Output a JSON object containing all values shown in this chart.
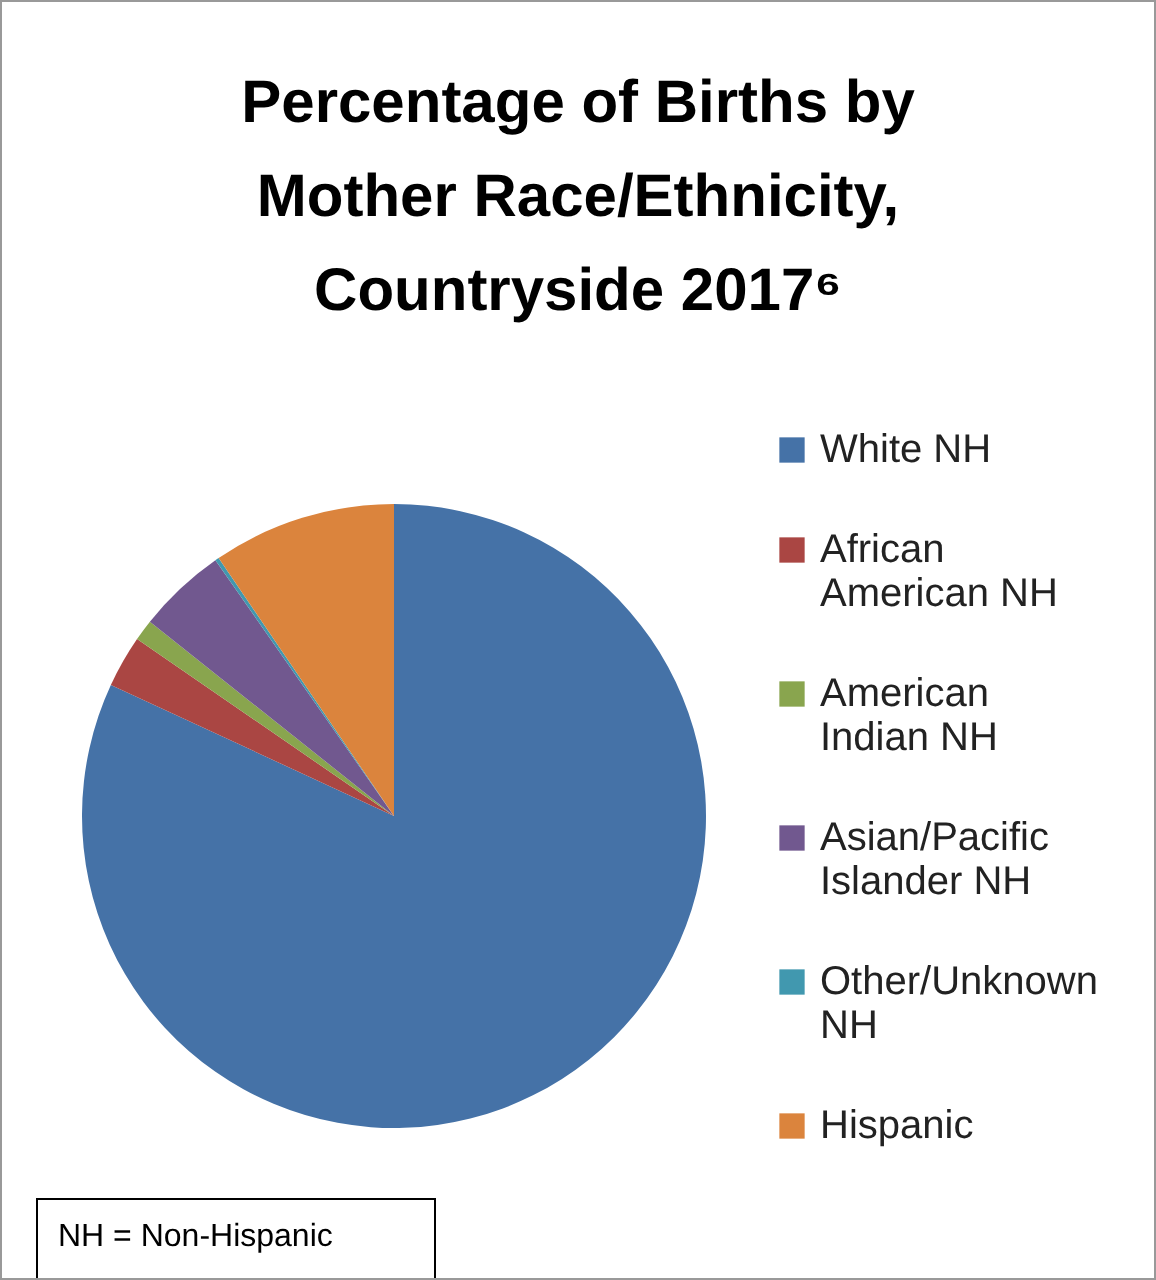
{
  "chart_data": {
    "type": "pie",
    "title": "Percentage of Births by Mother Race/Ethnicity, Countryside 2017⁶",
    "categories": [
      "White NH",
      "African American NH",
      "American Indian NH",
      "Asian/Pacific Islander NH",
      "Other/Unknown NH",
      "Hispanic"
    ],
    "values": [
      81.9,
      2.7,
      1.1,
      4.6,
      0.2,
      9.5
    ],
    "colors": [
      "#4572a7",
      "#aa4643",
      "#89a54e",
      "#71588f",
      "#4198af",
      "#db843d"
    ],
    "legend": "right",
    "annotations": [
      "NH = Non-Hispanic"
    ]
  }
}
